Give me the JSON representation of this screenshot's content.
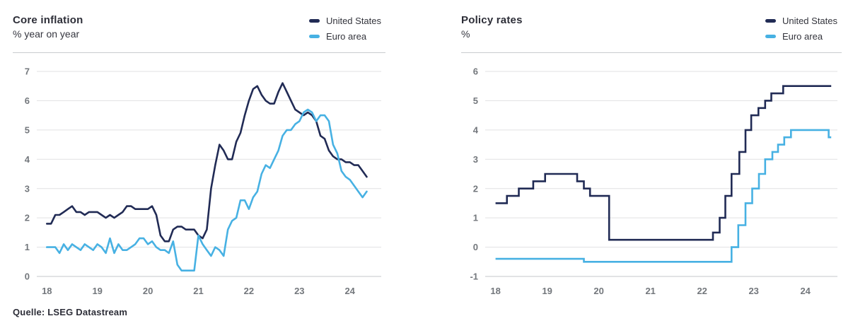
{
  "source_note": "Quelle: LSEG Datastream",
  "theme": {
    "background": "#ffffff",
    "grid_color": "#e1e1e3",
    "axis_line_color": "#c6c7cb",
    "tick_label_color": "#73777c",
    "navy": "#212b55",
    "light_blue": "#47b1e3"
  },
  "charts": [
    {
      "title": "Core inflation",
      "subtitle": "% year on year",
      "legend": [
        {
          "label": "United States",
          "color": "#212b55"
        },
        {
          "label": "Euro area",
          "color": "#47b1e3"
        }
      ]
    },
    {
      "title": "Policy rates",
      "subtitle": "%",
      "legend": [
        {
          "label": "United States",
          "color": "#212b55"
        },
        {
          "label": "Euro area",
          "color": "#47b1e3"
        }
      ]
    }
  ],
  "chart_data": [
    {
      "type": "line",
      "title": "Core inflation",
      "ylabel": "% year on year",
      "grid": true,
      "legend_position": "top-right",
      "xlim": [
        2017.8,
        2024.62
      ],
      "ylim": [
        0,
        7
      ],
      "yticks": [
        0,
        1,
        2,
        3,
        4,
        5,
        6,
        7
      ],
      "xticks": [
        2018,
        2019,
        2020,
        2021,
        2022,
        2023,
        2024
      ],
      "xtick_labels": [
        "18",
        "19",
        "20",
        "21",
        "22",
        "23",
        "24"
      ],
      "x_start": 2018.0,
      "frequency": "monthly",
      "series": [
        {
          "name": "United States",
          "color": "#212b55",
          "values": [
            1.8,
            1.8,
            2.1,
            2.1,
            2.2,
            2.3,
            2.4,
            2.2,
            2.2,
            2.1,
            2.2,
            2.2,
            2.2,
            2.1,
            2.0,
            2.1,
            2.0,
            2.1,
            2.2,
            2.4,
            2.4,
            2.3,
            2.3,
            2.3,
            2.3,
            2.4,
            2.1,
            1.4,
            1.2,
            1.2,
            1.6,
            1.7,
            1.7,
            1.6,
            1.6,
            1.6,
            1.4,
            1.3,
            1.6,
            3.0,
            3.8,
            4.5,
            4.3,
            4.0,
            4.0,
            4.6,
            4.9,
            5.5,
            6.0,
            6.4,
            6.5,
            6.2,
            6.0,
            5.9,
            5.9,
            6.3,
            6.6,
            6.3,
            6.0,
            5.7,
            5.6,
            5.5,
            5.6,
            5.5,
            5.3,
            4.8,
            4.7,
            4.3,
            4.1,
            4.0,
            4.0,
            3.9,
            3.9,
            3.8,
            3.8,
            3.6,
            3.4
          ]
        },
        {
          "name": "Euro area",
          "color": "#47b1e3",
          "values": [
            1.0,
            1.0,
            1.0,
            0.8,
            1.1,
            0.9,
            1.1,
            1.0,
            0.9,
            1.1,
            1.0,
            0.9,
            1.1,
            1.0,
            0.8,
            1.3,
            0.8,
            1.1,
            0.9,
            0.9,
            1.0,
            1.1,
            1.3,
            1.3,
            1.1,
            1.2,
            1.0,
            0.9,
            0.9,
            0.8,
            1.2,
            0.4,
            0.2,
            0.2,
            0.2,
            0.2,
            1.4,
            1.1,
            0.9,
            0.7,
            1.0,
            0.9,
            0.7,
            1.6,
            1.9,
            2.0,
            2.6,
            2.6,
            2.3,
            2.7,
            2.9,
            3.5,
            3.8,
            3.7,
            4.0,
            4.3,
            4.8,
            5.0,
            5.0,
            5.2,
            5.3,
            5.6,
            5.7,
            5.6,
            5.3,
            5.5,
            5.5,
            5.3,
            4.5,
            4.2,
            3.6,
            3.4,
            3.3,
            3.1,
            2.9,
            2.7,
            2.9
          ]
        }
      ]
    },
    {
      "type": "step",
      "title": "Policy rates",
      "ylabel": "%",
      "grid": true,
      "legend_position": "top-right",
      "xlim": [
        2017.8,
        2024.62
      ],
      "ylim": [
        -1,
        6
      ],
      "yticks": [
        -1,
        0,
        1,
        2,
        3,
        4,
        5,
        6
      ],
      "xticks": [
        2018,
        2019,
        2020,
        2021,
        2022,
        2023,
        2024
      ],
      "xtick_labels": [
        "18",
        "19",
        "20",
        "21",
        "22",
        "23",
        "24"
      ],
      "x_end": 2024.5,
      "series": [
        {
          "name": "United States",
          "color": "#212b55",
          "points": [
            [
              2018.0,
              1.5
            ],
            [
              2018.22,
              1.75
            ],
            [
              2018.45,
              2.0
            ],
            [
              2018.73,
              2.25
            ],
            [
              2018.96,
              2.5
            ],
            [
              2019.58,
              2.25
            ],
            [
              2019.71,
              2.0
            ],
            [
              2019.83,
              1.75
            ],
            [
              2020.2,
              0.25
            ],
            [
              2022.21,
              0.5
            ],
            [
              2022.34,
              1.0
            ],
            [
              2022.45,
              1.75
            ],
            [
              2022.57,
              2.5
            ],
            [
              2022.72,
              3.25
            ],
            [
              2022.84,
              4.0
            ],
            [
              2022.95,
              4.5
            ],
            [
              2023.09,
              4.75
            ],
            [
              2023.22,
              5.0
            ],
            [
              2023.34,
              5.25
            ],
            [
              2023.57,
              5.5
            ]
          ]
        },
        {
          "name": "Euro area",
          "color": "#47b1e3",
          "points": [
            [
              2018.0,
              -0.4
            ],
            [
              2019.71,
              -0.5
            ],
            [
              2022.57,
              0.0
            ],
            [
              2022.7,
              0.75
            ],
            [
              2022.84,
              1.5
            ],
            [
              2022.97,
              2.0
            ],
            [
              2023.1,
              2.5
            ],
            [
              2023.22,
              3.0
            ],
            [
              2023.36,
              3.25
            ],
            [
              2023.47,
              3.5
            ],
            [
              2023.59,
              3.75
            ],
            [
              2023.72,
              4.0
            ],
            [
              2024.45,
              3.75
            ]
          ]
        }
      ]
    }
  ]
}
